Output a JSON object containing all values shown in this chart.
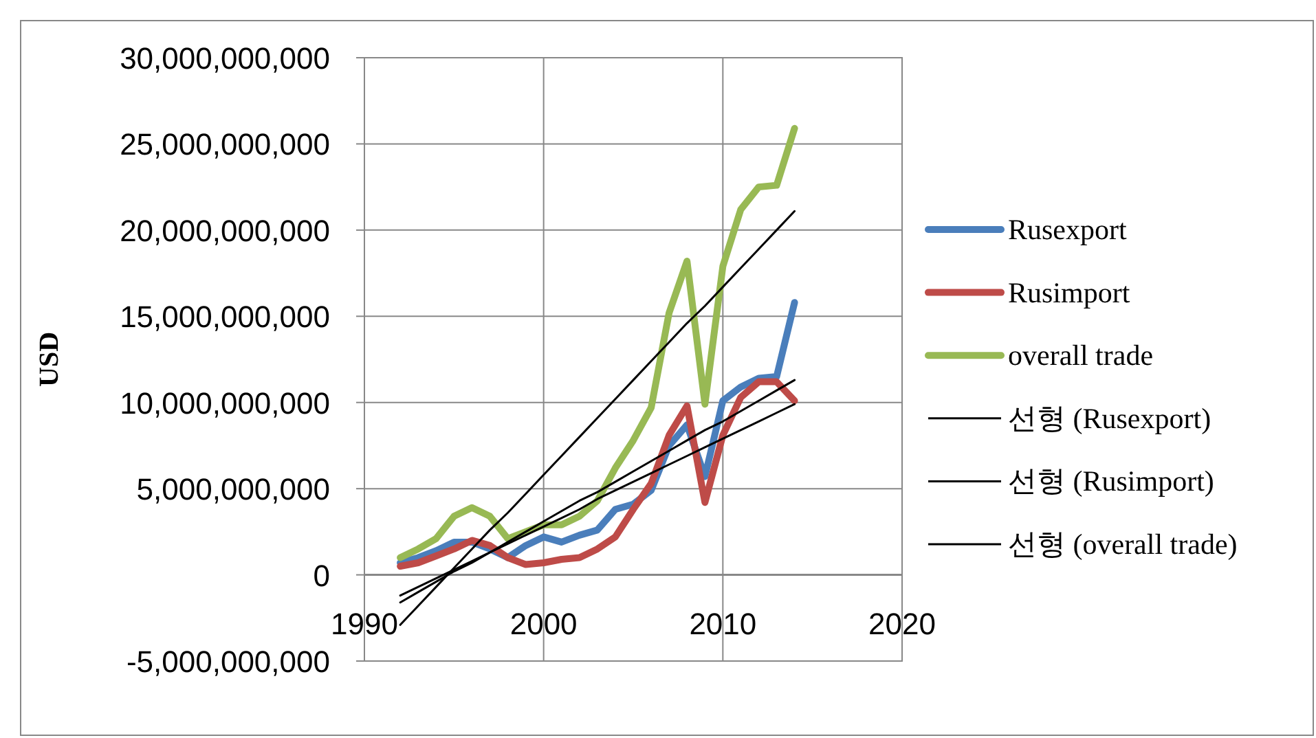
{
  "chart_data": {
    "type": "line",
    "ylabel": "USD",
    "xlim": [
      1990,
      2020
    ],
    "xticks": [
      1990,
      2000,
      2010,
      2020
    ],
    "ylim": [
      -5000000000,
      30000000000
    ],
    "yticks": [
      {
        "value": -5000000000,
        "label": "-5,000,000,000"
      },
      {
        "value": 0,
        "label": "0"
      },
      {
        "value": 5000000000,
        "label": "5,000,000,000"
      },
      {
        "value": 10000000000,
        "label": "10,000,000,000"
      },
      {
        "value": 15000000000,
        "label": "15,000,000,000"
      },
      {
        "value": 20000000000,
        "label": "20,000,000,000"
      },
      {
        "value": 25000000000,
        "label": "25,000,000,000"
      },
      {
        "value": 30000000000,
        "label": "30,000,000,000"
      }
    ],
    "grid": true,
    "legend": "right",
    "x": [
      1992,
      1993,
      1994,
      1995,
      1996,
      1997,
      1998,
      1999,
      2000,
      2001,
      2002,
      2003,
      2004,
      2005,
      2006,
      2007,
      2008,
      2009,
      2010,
      2011,
      2012,
      2013,
      2014
    ],
    "series": [
      {
        "name": "Rusexport",
        "color": "#4a7ebb",
        "values": [
          700000000.0,
          1000000000.0,
          1400000000.0,
          1900000000.0,
          1900000000.0,
          1500000000.0,
          1000000000.0,
          1700000000.0,
          2200000000.0,
          1900000000.0,
          2300000000.0,
          2600000000.0,
          3800000000.0,
          4100000000.0,
          4900000000.0,
          7500000000.0,
          8700000000.0,
          5700000000.0,
          10100000000.0,
          10900000000.0,
          11400000000.0,
          11500000000.0,
          15800000000.0
        ]
      },
      {
        "name": "Rusimport",
        "color": "#be4b48",
        "values": [
          500000000.0,
          700000000.0,
          1100000000.0,
          1500000000.0,
          2000000000.0,
          1700000000.0,
          1000000000.0,
          600000000.0,
          700000000.0,
          900000000.0,
          1000000000.0,
          1500000000.0,
          2200000000.0,
          3800000000.0,
          5300000000.0,
          8100000000.0,
          9800000000.0,
          4200000000.0,
          8100000000.0,
          10300000000.0,
          11200000000.0,
          11200000000.0,
          10100000000.0
        ]
      },
      {
        "name": "overall trade",
        "color": "#98b954",
        "values": [
          1000000000.0,
          1500000000.0,
          2100000000.0,
          3400000000.0,
          3900000000.0,
          3400000000.0,
          2100000000.0,
          2500000000.0,
          2900000000.0,
          2900000000.0,
          3400000000.0,
          4300000000.0,
          6200000000.0,
          7800000000.0,
          9700000000.0,
          15200000000.0,
          18200000000.0,
          9900000000.0,
          17900000000.0,
          21200000000.0,
          22500000000.0,
          22600000000.0,
          25900000000.0
        ]
      },
      {
        "name": "선형 (Rusexport)",
        "type": "line",
        "color": "#000000",
        "values": [
          -1600000000.0,
          -1000000000.0,
          -400000000.0,
          200000000.0,
          700000000.0,
          1300000000.0,
          1900000000.0,
          2500000000.0,
          3100000000.0,
          3700000000.0,
          4300000000.0,
          4800000000.0,
          5400000000.0,
          6000000000.0,
          6600000000.0,
          7200000000.0,
          7800000000.0,
          8400000000.0,
          8900000000.0,
          9500000000.0,
          10100000000.0,
          10700000000.0,
          11300000000.0
        ]
      },
      {
        "name": "선형 (Rusimport)",
        "type": "line",
        "color": "#000000",
        "values": [
          -1200000000.0,
          -700000000.0,
          -200000000.0,
          300000000.0,
          800000000.0,
          1300000000.0,
          1800000000.0,
          2300000000.0,
          2800000000.0,
          3300000000.0,
          3800000000.0,
          4400000000.0,
          4900000000.0,
          5400000000.0,
          5900000000.0,
          6400000000.0,
          6900000000.0,
          7400000000.0,
          7900000000.0,
          8400000000.0,
          8900000000.0,
          9400000000.0,
          9900000000.0
        ]
      },
      {
        "name": "선형 (overall trade)",
        "type": "line",
        "color": "#000000",
        "values": [
          -2900000000.0,
          -1800000000.0,
          -700000000.0,
          400000000.0,
          1500000000.0,
          2600000000.0,
          3600000000.0,
          4700000000.0,
          5800000000.0,
          6900000000.0,
          8000000000.0,
          9100000000.0,
          10200000000.0,
          11300000000.0,
          12400000000.0,
          13500000000.0,
          14600000000.0,
          15600000000.0,
          16700000000.0,
          17800000000.0,
          18900000000.0,
          20000000000.0,
          21100000000.0
        ]
      }
    ]
  }
}
